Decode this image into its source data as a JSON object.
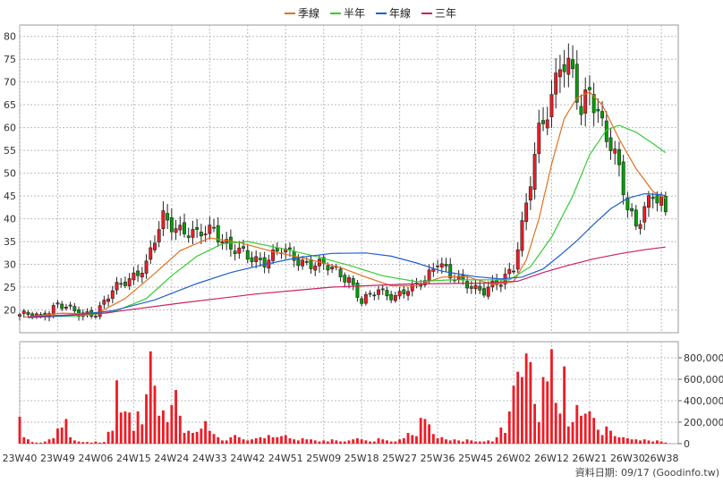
{
  "chart_data": [
    {
      "type": "candlestick",
      "legend": [
        {
          "name": "季線",
          "color": "#e07020"
        },
        {
          "name": "半年",
          "color": "#33cc33"
        },
        {
          "name": "年線",
          "color": "#1f5fd0"
        },
        {
          "name": "三年",
          "color": "#cc2060"
        }
      ],
      "ylim": [
        15,
        82.5
      ],
      "yticks": [
        20,
        25,
        30,
        35,
        40,
        45,
        50,
        55,
        60,
        65,
        70,
        75,
        80
      ],
      "xlim": [
        0,
        156
      ],
      "xticks": [
        {
          "i": 0,
          "label": "23W40"
        },
        {
          "i": 9,
          "label": "23W49"
        },
        {
          "i": 18,
          "label": "24W06"
        },
        {
          "i": 27,
          "label": "24W15"
        },
        {
          "i": 36,
          "label": "24W24"
        },
        {
          "i": 45,
          "label": "24W33"
        },
        {
          "i": 54,
          "label": "24W42"
        },
        {
          "i": 63,
          "label": "24W51"
        },
        {
          "i": 72,
          "label": "25W09"
        },
        {
          "i": 81,
          "label": "25W18"
        },
        {
          "i": 90,
          "label": "25W27"
        },
        {
          "i": 99,
          "label": "25W36"
        },
        {
          "i": 108,
          "label": "25W45"
        },
        {
          "i": 117,
          "label": "26W02"
        },
        {
          "i": 126,
          "label": "26W12"
        },
        {
          "i": 135,
          "label": "26W21"
        },
        {
          "i": 144,
          "label": "26W30"
        },
        {
          "i": 152,
          "label": "26W38"
        }
      ],
      "anchors": [
        [
          0,
          19
        ],
        [
          5,
          18.5
        ],
        [
          9,
          21.5
        ],
        [
          14,
          19
        ],
        [
          18,
          19.5
        ],
        [
          22,
          24
        ],
        [
          26,
          27
        ],
        [
          30,
          30
        ],
        [
          34,
          40
        ],
        [
          38,
          38
        ],
        [
          42,
          36
        ],
        [
          46,
          38
        ],
        [
          50,
          33.5
        ],
        [
          54,
          31.5
        ],
        [
          58,
          31
        ],
        [
          62,
          33
        ],
        [
          66,
          31
        ],
        [
          70,
          30
        ],
        [
          74,
          29
        ],
        [
          78,
          27
        ],
        [
          81,
          21.5
        ],
        [
          85,
          24.5
        ],
        [
          89,
          23
        ],
        [
          93,
          24.5
        ],
        [
          96,
          27
        ],
        [
          99,
          31
        ],
        [
          102,
          27
        ],
        [
          106,
          26
        ],
        [
          110,
          24
        ],
        [
          114,
          26
        ],
        [
          117,
          30
        ],
        [
          120,
          43
        ],
        [
          123,
          58
        ],
        [
          126,
          67
        ],
        [
          128,
          76
        ],
        [
          131,
          71
        ],
        [
          133,
          62
        ],
        [
          135,
          69
        ],
        [
          137,
          64
        ],
        [
          140,
          56
        ],
        [
          142,
          50
        ],
        [
          144,
          42
        ],
        [
          146,
          39
        ],
        [
          148,
          43
        ],
        [
          150,
          45
        ],
        [
          152,
          43
        ],
        [
          153,
          40
        ]
      ],
      "ma": {
        "季線": [
          [
            1,
            18.4
          ],
          [
            10,
            19.3
          ],
          [
            18,
            19.1
          ],
          [
            25,
            22.5
          ],
          [
            32,
            28
          ],
          [
            38,
            33
          ],
          [
            45,
            35.8
          ],
          [
            52,
            34.8
          ],
          [
            60,
            32.8
          ],
          [
            68,
            31.2
          ],
          [
            76,
            29.3
          ],
          [
            82,
            27.2
          ],
          [
            88,
            25.3
          ],
          [
            94,
            25.3
          ],
          [
            100,
            27.2
          ],
          [
            106,
            27.3
          ],
          [
            112,
            25.6
          ],
          [
            117,
            26.2
          ],
          [
            120,
            31
          ],
          [
            123,
            40
          ],
          [
            126,
            52
          ],
          [
            129,
            62
          ],
          [
            132,
            66.5
          ],
          [
            135,
            67.8
          ],
          [
            138,
            65
          ],
          [
            142,
            57.5
          ],
          [
            146,
            51
          ],
          [
            150,
            46
          ],
          [
            153,
            44.5
          ]
        ],
        "半年": [
          [
            6,
            18.5
          ],
          [
            14,
            18.7
          ],
          [
            22,
            19.5
          ],
          [
            30,
            22.5
          ],
          [
            36,
            27.5
          ],
          [
            42,
            31.8
          ],
          [
            48,
            34.5
          ],
          [
            54,
            35
          ],
          [
            62,
            33.5
          ],
          [
            70,
            31.8
          ],
          [
            78,
            29.8
          ],
          [
            86,
            27.5
          ],
          [
            94,
            26.2
          ],
          [
            102,
            26.6
          ],
          [
            110,
            26.6
          ],
          [
            116,
            26.6
          ],
          [
            121,
            29.5
          ],
          [
            126,
            36
          ],
          [
            131,
            45
          ],
          [
            135,
            54
          ],
          [
            139,
            59.5
          ],
          [
            142,
            60.5
          ],
          [
            146,
            59
          ],
          [
            150,
            56.5
          ],
          [
            153,
            54.5
          ]
        ],
        "年線": [
          [
            2,
            18.3
          ],
          [
            12,
            18.8
          ],
          [
            22,
            19.8
          ],
          [
            32,
            22.2
          ],
          [
            42,
            25.8
          ],
          [
            50,
            28.2
          ],
          [
            58,
            30
          ],
          [
            66,
            31.5
          ],
          [
            74,
            32.4
          ],
          [
            82,
            32.5
          ],
          [
            88,
            31.8
          ],
          [
            94,
            30.3
          ],
          [
            100,
            28.5
          ],
          [
            108,
            27.3
          ],
          [
            114,
            26.8
          ],
          [
            119,
            27.2
          ],
          [
            124,
            29
          ],
          [
            128,
            32
          ],
          [
            132,
            35.2
          ],
          [
            136,
            38.8
          ],
          [
            140,
            42.2
          ],
          [
            144,
            44.5
          ],
          [
            148,
            45.5
          ],
          [
            152,
            45.3
          ],
          [
            153,
            45
          ]
        ],
        "三年": [
          [
            2,
            18.5
          ],
          [
            20,
            19.3
          ],
          [
            38,
            21.5
          ],
          [
            56,
            23.5
          ],
          [
            74,
            25
          ],
          [
            92,
            25.7
          ],
          [
            110,
            25.9
          ],
          [
            118,
            26.3
          ],
          [
            124,
            28.2
          ],
          [
            130,
            29.8
          ],
          [
            136,
            31.2
          ],
          [
            142,
            32.3
          ],
          [
            148,
            33.2
          ],
          [
            153,
            33.8
          ]
        ]
      },
      "volume": {
        "ylim": [
          0,
          950000
        ],
        "yticks": [
          {
            "v": 0,
            "label": "0"
          },
          {
            "v": 200000,
            "label": "200,000"
          },
          {
            "v": 400000,
            "label": "400,000"
          },
          {
            "v": 600000,
            "label": "600,000"
          },
          {
            "v": 800000,
            "label": "800,000"
          }
        ],
        "bars": [
          [
            0,
            250000
          ],
          [
            1,
            60000
          ],
          [
            2,
            40000
          ],
          [
            3,
            15000
          ],
          [
            4,
            10000
          ],
          [
            5,
            10000
          ],
          [
            6,
            20000
          ],
          [
            7,
            40000
          ],
          [
            8,
            50000
          ],
          [
            9,
            140000
          ],
          [
            10,
            150000
          ],
          [
            11,
            230000
          ],
          [
            12,
            60000
          ],
          [
            13,
            30000
          ],
          [
            14,
            20000
          ],
          [
            15,
            15000
          ],
          [
            16,
            15000
          ],
          [
            17,
            10000
          ],
          [
            18,
            20000
          ],
          [
            19,
            10000
          ],
          [
            20,
            15000
          ],
          [
            21,
            110000
          ],
          [
            22,
            120000
          ],
          [
            23,
            590000
          ],
          [
            24,
            290000
          ],
          [
            25,
            300000
          ],
          [
            26,
            290000
          ],
          [
            27,
            120000
          ],
          [
            28,
            300000
          ],
          [
            29,
            180000
          ],
          [
            30,
            460000
          ],
          [
            31,
            860000
          ],
          [
            32,
            540000
          ],
          [
            33,
            260000
          ],
          [
            34,
            310000
          ],
          [
            35,
            200000
          ],
          [
            36,
            360000
          ],
          [
            37,
            500000
          ],
          [
            38,
            260000
          ],
          [
            39,
            100000
          ],
          [
            40,
            120000
          ],
          [
            41,
            100000
          ],
          [
            42,
            110000
          ],
          [
            43,
            140000
          ],
          [
            44,
            210000
          ],
          [
            45,
            120000
          ],
          [
            46,
            90000
          ],
          [
            47,
            60000
          ],
          [
            48,
            30000
          ],
          [
            49,
            30000
          ],
          [
            50,
            60000
          ],
          [
            51,
            80000
          ],
          [
            52,
            60000
          ],
          [
            53,
            40000
          ],
          [
            54,
            30000
          ],
          [
            55,
            40000
          ],
          [
            56,
            50000
          ],
          [
            57,
            60000
          ],
          [
            58,
            50000
          ],
          [
            59,
            80000
          ],
          [
            60,
            60000
          ],
          [
            61,
            60000
          ],
          [
            62,
            70000
          ],
          [
            63,
            80000
          ],
          [
            64,
            50000
          ],
          [
            65,
            40000
          ],
          [
            66,
            30000
          ],
          [
            67,
            50000
          ],
          [
            68,
            40000
          ],
          [
            69,
            40000
          ],
          [
            70,
            30000
          ],
          [
            71,
            20000
          ],
          [
            72,
            30000
          ],
          [
            73,
            20000
          ],
          [
            74,
            40000
          ],
          [
            75,
            30000
          ],
          [
            76,
            20000
          ],
          [
            77,
            20000
          ],
          [
            78,
            30000
          ],
          [
            79,
            40000
          ],
          [
            80,
            50000
          ],
          [
            81,
            40000
          ],
          [
            82,
            30000
          ],
          [
            83,
            20000
          ],
          [
            84,
            20000
          ],
          [
            85,
            50000
          ],
          [
            86,
            40000
          ],
          [
            87,
            30000
          ],
          [
            88,
            20000
          ],
          [
            89,
            20000
          ],
          [
            90,
            40000
          ],
          [
            91,
            50000
          ],
          [
            92,
            100000
          ],
          [
            93,
            80000
          ],
          [
            94,
            70000
          ],
          [
            95,
            240000
          ],
          [
            96,
            230000
          ],
          [
            97,
            180000
          ],
          [
            98,
            90000
          ],
          [
            99,
            50000
          ],
          [
            100,
            60000
          ],
          [
            101,
            40000
          ],
          [
            102,
            30000
          ],
          [
            103,
            40000
          ],
          [
            104,
            30000
          ],
          [
            105,
            20000
          ],
          [
            106,
            40000
          ],
          [
            107,
            30000
          ],
          [
            108,
            20000
          ],
          [
            109,
            20000
          ],
          [
            110,
            20000
          ],
          [
            111,
            30000
          ],
          [
            112,
            20000
          ],
          [
            113,
            60000
          ],
          [
            114,
            150000
          ],
          [
            115,
            100000
          ],
          [
            116,
            300000
          ],
          [
            117,
            540000
          ],
          [
            118,
            670000
          ],
          [
            119,
            620000
          ],
          [
            120,
            840000
          ],
          [
            121,
            760000
          ],
          [
            122,
            370000
          ],
          [
            123,
            200000
          ],
          [
            124,
            620000
          ],
          [
            125,
            580000
          ],
          [
            126,
            880000
          ],
          [
            127,
            380000
          ],
          [
            128,
            280000
          ],
          [
            129,
            720000
          ],
          [
            130,
            160000
          ],
          [
            131,
            200000
          ],
          [
            132,
            360000
          ],
          [
            133,
            260000
          ],
          [
            134,
            280000
          ],
          [
            135,
            300000
          ],
          [
            136,
            240000
          ],
          [
            137,
            130000
          ],
          [
            138,
            80000
          ],
          [
            139,
            160000
          ],
          [
            140,
            120000
          ],
          [
            141,
            70000
          ],
          [
            142,
            60000
          ],
          [
            143,
            60000
          ],
          [
            144,
            50000
          ],
          [
            145,
            40000
          ],
          [
            146,
            40000
          ],
          [
            147,
            30000
          ],
          [
            148,
            40000
          ],
          [
            149,
            30000
          ],
          [
            150,
            20000
          ],
          [
            151,
            30000
          ],
          [
            152,
            20000
          ],
          [
            153,
            10000
          ]
        ]
      }
    }
  ],
  "source_label": "資料日期: 09/17 (Goodinfo.tw)"
}
